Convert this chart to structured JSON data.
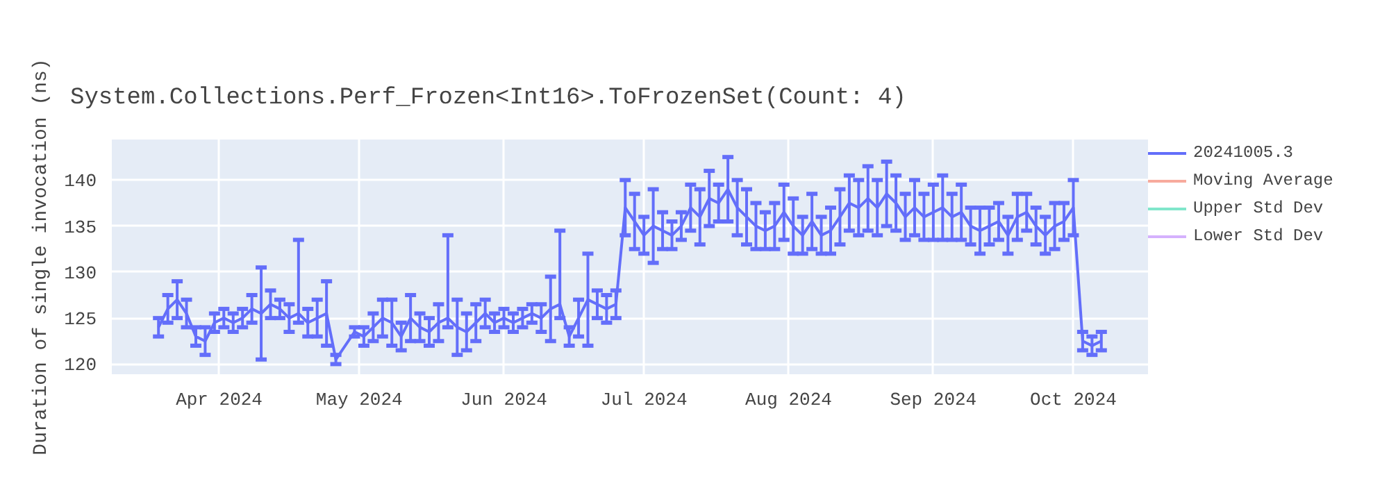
{
  "chart_data": {
    "type": "line",
    "title": "System.Collections.Perf_Frozen<Int16>.ToFrozenSet(Count: 4)",
    "ylabel": "Duration of single invocation (ns)",
    "x": [
      "2024-03-19",
      "2024-03-21",
      "2024-03-23",
      "2024-03-25",
      "2024-03-27",
      "2024-03-29",
      "2024-03-31",
      "2024-04-02",
      "2024-04-04",
      "2024-04-06",
      "2024-04-08",
      "2024-04-10",
      "2024-04-12",
      "2024-04-14",
      "2024-04-16",
      "2024-04-18",
      "2024-04-20",
      "2024-04-22",
      "2024-04-24",
      "2024-04-26",
      "2024-04-30",
      "2024-05-02",
      "2024-05-04",
      "2024-05-06",
      "2024-05-08",
      "2024-05-10",
      "2024-05-12",
      "2024-05-14",
      "2024-05-16",
      "2024-05-18",
      "2024-05-20",
      "2024-05-22",
      "2024-05-24",
      "2024-05-26",
      "2024-05-28",
      "2024-05-30",
      "2024-06-01",
      "2024-06-03",
      "2024-06-05",
      "2024-06-07",
      "2024-06-09",
      "2024-06-11",
      "2024-06-13",
      "2024-06-15",
      "2024-06-17",
      "2024-06-19",
      "2024-06-21",
      "2024-06-23",
      "2024-06-25",
      "2024-06-27",
      "2024-06-29",
      "2024-07-01",
      "2024-07-03",
      "2024-07-05",
      "2024-07-07",
      "2024-07-09",
      "2024-07-11",
      "2024-07-13",
      "2024-07-15",
      "2024-07-17",
      "2024-07-19",
      "2024-07-21",
      "2024-07-23",
      "2024-07-25",
      "2024-07-27",
      "2024-07-29",
      "2024-07-31",
      "2024-08-02",
      "2024-08-04",
      "2024-08-06",
      "2024-08-08",
      "2024-08-10",
      "2024-08-12",
      "2024-08-14",
      "2024-08-16",
      "2024-08-18",
      "2024-08-20",
      "2024-08-22",
      "2024-08-24",
      "2024-08-26",
      "2024-08-28",
      "2024-08-30",
      "2024-09-01",
      "2024-09-03",
      "2024-09-05",
      "2024-09-07",
      "2024-09-09",
      "2024-09-11",
      "2024-09-13",
      "2024-09-15",
      "2024-09-17",
      "2024-09-19",
      "2024-09-21",
      "2024-09-23",
      "2024-09-25",
      "2024-09-27",
      "2024-09-29",
      "2024-10-01",
      "2024-10-03",
      "2024-10-05",
      "2024-10-07"
    ],
    "series": [
      {
        "name": "20241005.3",
        "color": "#636efa",
        "values": [
          124,
          126,
          127,
          125.5,
          123,
          122.5,
          124.5,
          125,
          124.5,
          125,
          126,
          125.5,
          126.5,
          126,
          125,
          125.5,
          124.5,
          125,
          125.5,
          120.5,
          123.5,
          123,
          124,
          125,
          124.5,
          123,
          125,
          124,
          123.5,
          124.5,
          125,
          124,
          123.5,
          124.5,
          125.5,
          124.5,
          125,
          124.5,
          125,
          125.5,
          125,
          126,
          126.5,
          123,
          125,
          127,
          126.5,
          126,
          126.5,
          137,
          135.5,
          134,
          135,
          134.5,
          134,
          135,
          137,
          136,
          138,
          137.5,
          139,
          137,
          136,
          135,
          134.5,
          135,
          136.5,
          135,
          134,
          135.5,
          134,
          134.5,
          136,
          137.5,
          137,
          138,
          137,
          138.5,
          137.5,
          136,
          137,
          136,
          136.5,
          137,
          136,
          136.5,
          135,
          134.5,
          135,
          135.5,
          134,
          136,
          136.5,
          135,
          134,
          135,
          135.5,
          137,
          122.5,
          122,
          122.5
        ],
        "errors": [
          1,
          1.5,
          2,
          1.5,
          1,
          1.5,
          1,
          1,
          1,
          1,
          1.5,
          5,
          1.5,
          1,
          1.5,
          [
            124.5,
            133.5
          ],
          1.5,
          2,
          3.5,
          0.5,
          0.5,
          1,
          1.5,
          2,
          2.5,
          1.5,
          2.5,
          1.5,
          1.5,
          2,
          [
            124,
            134
          ],
          3,
          2,
          2,
          1.5,
          1,
          1,
          1,
          1,
          1,
          1.5,
          3.5,
          [
            125,
            134.5
          ],
          1,
          2,
          5,
          1.5,
          1.5,
          1.5,
          3,
          3,
          2,
          4,
          2,
          1.5,
          1.5,
          2.5,
          3,
          3,
          2,
          3.5,
          3,
          3,
          2.5,
          2,
          2.5,
          3,
          3,
          2,
          3,
          2,
          2.5,
          3,
          3,
          3,
          3.5,
          3,
          3.5,
          3,
          2.5,
          3,
          2.5,
          3,
          3.5,
          2.5,
          3,
          2,
          2.5,
          2,
          2,
          2,
          2.5,
          2,
          2,
          2,
          2.5,
          2,
          3,
          1,
          1,
          1
        ]
      },
      {
        "name": "Moving Average",
        "color": "#f7aa9d",
        "values": [
          null,
          null,
          null,
          null,
          null,
          null,
          null,
          null,
          null,
          null,
          null,
          null,
          null,
          null,
          null,
          null,
          null,
          null,
          null,
          null,
          null,
          null,
          null,
          null,
          null,
          null,
          null,
          null,
          null,
          null,
          null,
          null,
          null,
          null,
          null,
          null,
          null,
          null,
          null,
          null,
          null,
          null,
          null,
          null,
          null,
          null,
          null,
          null,
          null,
          null,
          null,
          null,
          null,
          null,
          null,
          null,
          null,
          null,
          null,
          null,
          null,
          null,
          null,
          null,
          null,
          null,
          null,
          null,
          null,
          null,
          null,
          null,
          null,
          null,
          null,
          null,
          null,
          null,
          null,
          null,
          null,
          null,
          null,
          null,
          null,
          null,
          null,
          null,
          null,
          null,
          null,
          null,
          null,
          null,
          null,
          null,
          null,
          null,
          null,
          null,
          null
        ]
      },
      {
        "name": "Upper Std Dev",
        "color": "#80e6cb",
        "values": [
          null,
          null,
          null,
          null,
          null,
          null,
          null,
          null,
          null,
          null,
          null,
          null,
          null,
          null,
          null,
          null,
          null,
          null,
          null,
          null,
          null,
          null,
          null,
          null,
          null,
          null,
          null,
          null,
          null,
          null,
          null,
          null,
          null,
          null,
          null,
          null,
          null,
          null,
          null,
          null,
          null,
          null,
          null,
          null,
          null,
          null,
          null,
          null,
          null,
          null,
          null,
          null,
          null,
          null,
          null,
          null,
          null,
          null,
          null,
          null,
          null,
          null,
          null,
          null,
          null,
          null,
          null,
          null,
          null,
          null,
          null,
          null,
          null,
          null,
          null,
          null,
          null,
          null,
          null,
          null,
          null,
          null,
          null,
          null,
          null,
          null,
          null,
          null,
          null,
          null,
          null,
          null,
          null,
          null,
          null,
          null,
          null,
          null,
          null,
          null,
          null
        ]
      },
      {
        "name": "Lower Std Dev",
        "color": "#d5b1fd",
        "values": [
          null,
          null,
          null,
          null,
          null,
          null,
          null,
          null,
          null,
          null,
          null,
          null,
          null,
          null,
          null,
          null,
          null,
          null,
          null,
          null,
          null,
          null,
          null,
          null,
          null,
          null,
          null,
          null,
          null,
          null,
          null,
          null,
          null,
          null,
          null,
          null,
          null,
          null,
          null,
          null,
          null,
          null,
          null,
          null,
          null,
          null,
          null,
          null,
          null,
          null,
          null,
          null,
          null,
          null,
          null,
          null,
          null,
          null,
          null,
          null,
          null,
          null,
          null,
          null,
          null,
          null,
          null,
          null,
          null,
          null,
          null,
          null,
          null,
          null,
          null,
          null,
          null,
          null,
          null,
          null,
          null,
          null,
          null,
          null,
          null,
          null,
          null,
          null,
          null,
          null,
          null,
          null,
          null,
          null,
          null,
          null,
          null,
          null,
          null,
          null,
          null
        ]
      }
    ],
    "xlim": [
      "2024-03-09",
      "2024-10-17"
    ],
    "xticks": [
      {
        "value": "2024-04-01",
        "label": "Apr 2024"
      },
      {
        "value": "2024-05-01",
        "label": "May 2024"
      },
      {
        "value": "2024-06-01",
        "label": "Jun 2024"
      },
      {
        "value": "2024-07-01",
        "label": "Jul 2024"
      },
      {
        "value": "2024-08-01",
        "label": "Aug 2024"
      },
      {
        "value": "2024-09-01",
        "label": "Sep 2024"
      },
      {
        "value": "2024-10-01",
        "label": "Oct 2024"
      }
    ],
    "ylim": [
      118.9,
      144.4
    ],
    "yticks": [
      120,
      125,
      130,
      135,
      140
    ],
    "grid": true,
    "legend": "top right",
    "marker": "none",
    "line_style": "solid"
  }
}
